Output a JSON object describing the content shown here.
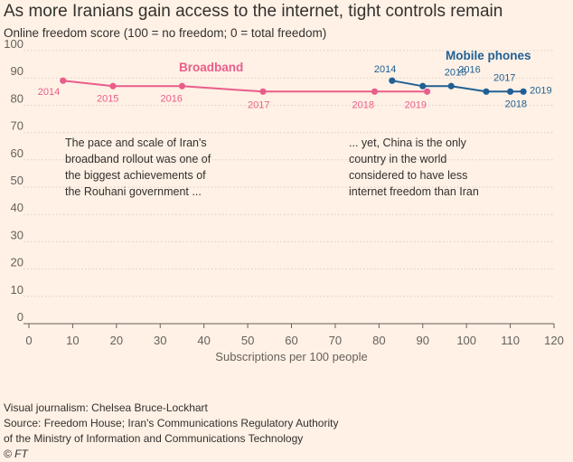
{
  "chart_data": {
    "type": "line",
    "title": "As more Iranians gain access to the internet, tight controls remain",
    "ylabel": "Online freedom score (100 = no freedom; 0 = total freedom)",
    "xlabel": "Subscriptions per 100 people",
    "xlim": [
      0,
      120
    ],
    "ylim": [
      0,
      100
    ],
    "x_ticks": [
      "0",
      "10",
      "20",
      "30",
      "40",
      "50",
      "60",
      "70",
      "80",
      "90",
      "100",
      "110",
      "120"
    ],
    "y_ticks": [
      "0",
      "10",
      "20",
      "30",
      "40",
      "50",
      "60",
      "70",
      "80",
      "90",
      "100"
    ],
    "grid": "horizontal",
    "series": [
      {
        "name": "Broadband",
        "color": "#e95d8c",
        "points": [
          {
            "label": "2014",
            "x": 7.8,
            "y": 89
          },
          {
            "label": "2015",
            "x": 19.2,
            "y": 87
          },
          {
            "label": "2016",
            "x": 35,
            "y": 87
          },
          {
            "label": "2017",
            "x": 53.5,
            "y": 85
          },
          {
            "label": "2018",
            "x": 79,
            "y": 85
          },
          {
            "label": "2019",
            "x": 91,
            "y": 85
          }
        ]
      },
      {
        "name": "Mobile phones",
        "color": "#206095",
        "points": [
          {
            "label": "2014",
            "x": 83,
            "y": 89
          },
          {
            "label": "2015",
            "x": 90,
            "y": 87
          },
          {
            "label": "2016",
            "x": 96.5,
            "y": 87
          },
          {
            "label": "2017",
            "x": 104.5,
            "y": 85
          },
          {
            "label": "2018",
            "x": 110,
            "y": 85
          },
          {
            "label": "2019",
            "x": 113,
            "y": 85
          }
        ]
      }
    ],
    "annotations": [
      {
        "name": "annotation-broadband",
        "lines": [
          "The pace and scale of Iran's",
          "broadband rollout was one of",
          "the biggest achievements of",
          "the Rouhani government ..."
        ]
      },
      {
        "name": "annotation-china",
        "lines": [
          "... yet, China is the only",
          "country in the world",
          "considered to have less",
          "internet freedom than Iran"
        ]
      }
    ]
  },
  "footer": {
    "credit": "Visual journalism: Chelsea Bruce-Lockhart",
    "source_line1": "Source: Freedom House; Iran's Communications Regulatory Authority",
    "source_line2": "of the Ministry of Information and Communications Technology",
    "copyright": "© FT"
  }
}
